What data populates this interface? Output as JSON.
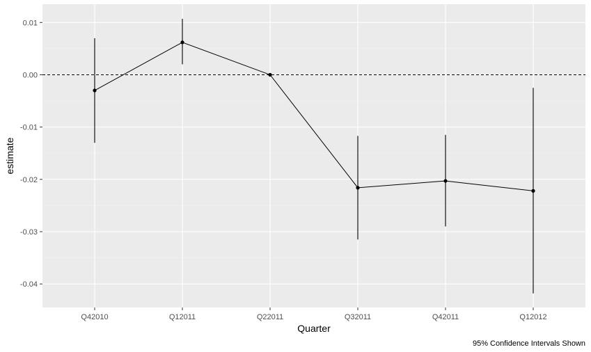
{
  "chart_data": {
    "type": "line",
    "xlabel": "Quarter",
    "ylabel": "estimate",
    "caption": "95% Confidence Intervals Shown",
    "categories": [
      "Q42010",
      "Q12011",
      "Q22011",
      "Q32011",
      "Q42011",
      "Q12012"
    ],
    "series": [
      {
        "values": [
          -0.003,
          0.0062,
          0.0,
          -0.0216,
          -0.0203,
          -0.0222
        ],
        "ci_low": [
          -0.013,
          0.002,
          0.0,
          -0.0315,
          -0.029,
          -0.0418
        ],
        "ci_high": [
          0.007,
          0.0107,
          0.0,
          -0.0117,
          -0.0115,
          -0.0025
        ]
      }
    ],
    "yticks": [
      0.01,
      0.0,
      -0.01,
      -0.02,
      -0.03,
      -0.04
    ],
    "ytick_labels": [
      "0.01",
      "0.00",
      "-0.01",
      "-0.02",
      "-0.03",
      "-0.04"
    ],
    "ylim": [
      -0.0445,
      0.0135
    ],
    "reference_line": 0.0,
    "grid": true,
    "colors": {
      "panel_background": "#ebebeb",
      "grid_major": "#ffffff",
      "grid_minor": "#f2f2f2",
      "line": "#000000",
      "tick_text": "#4d4d4d"
    }
  }
}
